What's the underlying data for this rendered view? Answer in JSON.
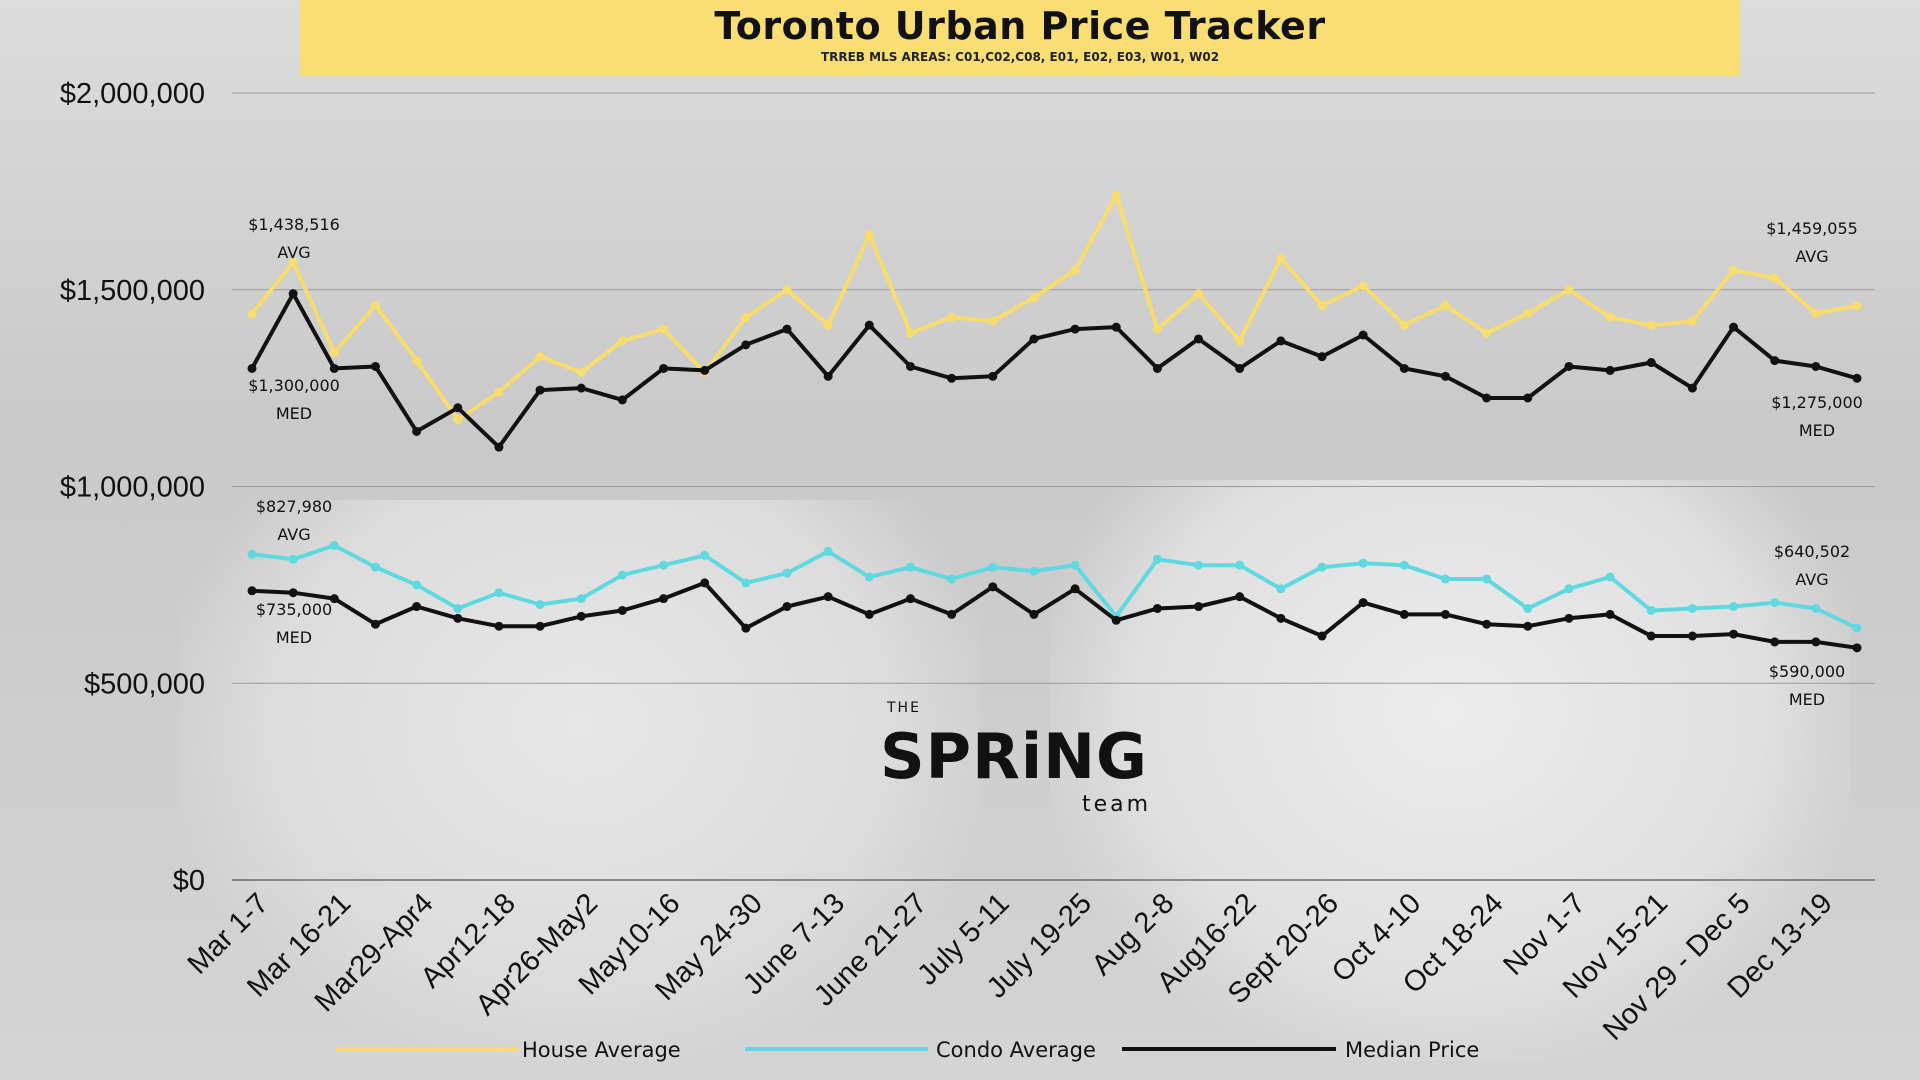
{
  "header": {
    "title": "Toronto Urban Price Tracker",
    "subtitle": "TRREB MLS AREAS: C01,C02,C08, E01, E02, E03, W01, W02"
  },
  "logo": {
    "the": "THE",
    "name": "SPRiNG",
    "team": "team"
  },
  "colors": {
    "house": "#f8dc6c",
    "condo": "#5fd9df",
    "median": "#111111",
    "grid": "#9a9a9a",
    "banner": "#f9df73"
  },
  "chart_data": {
    "type": "line",
    "title": "Toronto Urban Price Tracker",
    "subtitle": "TRREB MLS AREAS: C01,C02,C08, E01, E02, E03, W01, W02",
    "ylim": [
      0,
      2000000
    ],
    "y_ticks": [
      0,
      500000,
      1000000,
      1500000,
      2000000
    ],
    "y_tick_labels": [
      "$0",
      "$500,000",
      "$1,000,000",
      "$1,500,000",
      "$2,000,000"
    ],
    "x_tick_labels": [
      "Mar 1-7",
      "Mar 16-21",
      "Mar29-Apr4",
      "Apr12-18",
      "Apr26-May2",
      "May10-16",
      "May 24-30",
      "June 7-13",
      "June 21-27",
      "July 5-11",
      "July 19-25",
      "Aug 2-8",
      "Aug16-22",
      "Sept 20-26",
      "Oct 4-10",
      "Oct 18-24",
      "Nov 1-7",
      "Nov 15-21",
      "Nov 29 - Dec 5",
      "Dec 13-19"
    ],
    "grid": true,
    "legend_position": "bottom",
    "series": [
      {
        "name": "House Average",
        "color": "#f8dc6c",
        "values": [
          1438516,
          1570000,
          1340000,
          1460000,
          1320000,
          1170000,
          1240000,
          1330000,
          1290000,
          1370000,
          1400000,
          1290000,
          1430000,
          1500000,
          1410000,
          1640000,
          1390000,
          1430000,
          1420000,
          1480000,
          1550000,
          1740000,
          1400000,
          1490000,
          1370000,
          1580000,
          1460000,
          1510000,
          1410000,
          1460000,
          1390000,
          1440000,
          1500000,
          1430000,
          1410000,
          1420000,
          1550000,
          1530000,
          1440000,
          1459055
        ]
      },
      {
        "name": "Condo Average",
        "color": "#5fd9df",
        "values": [
          827980,
          815000,
          850000,
          795000,
          750000,
          690000,
          730000,
          700000,
          715000,
          775000,
          800000,
          825000,
          755000,
          780000,
          835000,
          770000,
          795000,
          765000,
          795000,
          785000,
          800000,
          670000,
          815000,
          800000,
          800000,
          740000,
          795000,
          805000,
          800000,
          765000,
          765000,
          690000,
          740000,
          770000,
          685000,
          690000,
          695000,
          705000,
          690000,
          640502
        ]
      },
      {
        "name": "Median Price",
        "color": "#111111",
        "values": [
          1300000,
          1490000,
          1300000,
          1305000,
          1140000,
          1200000,
          1100000,
          1245000,
          1250000,
          1220000,
          1300000,
          1295000,
          1360000,
          1400000,
          1280000,
          1410000,
          1305000,
          1275000,
          1280000,
          1375000,
          1400000,
          1405000,
          1300000,
          1375000,
          1300000,
          1370000,
          1330000,
          1385000,
          1300000,
          1280000,
          1225000,
          1225000,
          1305000,
          1295000,
          1315000,
          1250000,
          1405000,
          1320000,
          1305000,
          1275000
        ]
      },
      {
        "name": "Median Price",
        "color": "#111111",
        "values": [
          735000,
          730000,
          715000,
          650000,
          695000,
          665000,
          645000,
          645000,
          670000,
          685000,
          715000,
          755000,
          640000,
          695000,
          720000,
          675000,
          715000,
          675000,
          745000,
          675000,
          740000,
          660000,
          690000,
          695000,
          720000,
          665000,
          620000,
          705000,
          675000,
          675000,
          650000,
          645000,
          665000,
          675000,
          620000,
          620000,
          625000,
          605000,
          605000,
          590000
        ]
      }
    ],
    "annotations": {
      "house_start": [
        "$1,438,516",
        "AVG"
      ],
      "median_house_start": [
        "$1,300,000",
        "MED"
      ],
      "condo_start": [
        "$827,980",
        "AVG"
      ],
      "median_condo_start": [
        "$735,000",
        "MED"
      ],
      "house_end": [
        "$1,459,055",
        "AVG"
      ],
      "median_house_end": [
        "$1,275,000",
        "MED"
      ],
      "condo_end": [
        "$640,502",
        "AVG"
      ],
      "median_condo_end": [
        "$590,000",
        "MED"
      ]
    },
    "legend": [
      "House Average",
      "Condo Average",
      "Median Price"
    ]
  }
}
